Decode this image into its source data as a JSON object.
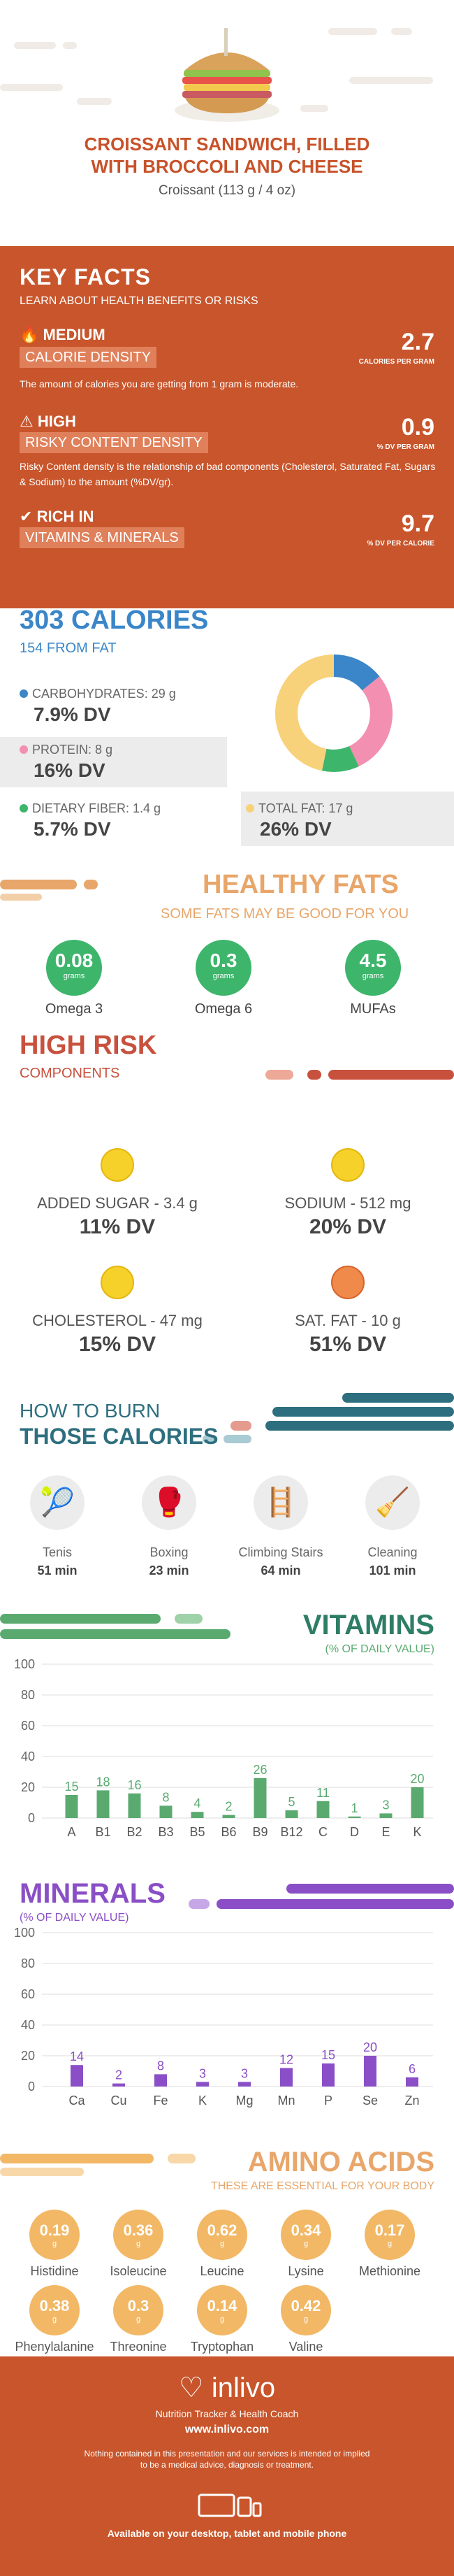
{
  "header": {
    "title_line1": "CROISSANT SANDWICH, FILLED",
    "title_line2": "WITH BROCCOLI AND CHEESE",
    "serving": "Croissant (113 g / 4 oz)"
  },
  "key_facts": {
    "title": "KEY FACTS",
    "subtitle": "LEARN ABOUT HEALTH BENEFITS OR RISKS",
    "calorie": {
      "level": "MEDIUM",
      "label": "CALORIE DENSITY",
      "value": "2.7",
      "unit": "CALORIES PER GRAM",
      "desc": "The amount of calories you are getting from 1 gram is moderate."
    },
    "risk": {
      "level": "HIGH",
      "label": "RISKY CONTENT DENSITY",
      "value": "0.9",
      "unit": "% DV PER GRAM",
      "desc": "Risky Content density is the relationship of bad components (Cholesterol, Saturated Fat, Sugars & Sodium) to the amount (%DV/gr)."
    },
    "rich": {
      "level": "RICH IN",
      "label": "VITAMINS & MINERALS",
      "value": "9.7",
      "unit": "% DV PER CALORIE"
    }
  },
  "calories": {
    "title": "303 CALORIES",
    "sub": "154 FROM FAT",
    "carbs": {
      "label": "CARBOHYDRATES: 29 g",
      "dv": "7.9% DV",
      "color": "#3a86c8",
      "pct": 7.9
    },
    "protein": {
      "label": "PROTEIN: 8 g",
      "dv": "16% DV",
      "color": "#f38fb0",
      "pct": 16
    },
    "fiber": {
      "label": "DIETARY FIBER: 1.4 g",
      "dv": "5.7% DV",
      "color": "#3db56b",
      "pct": 5.7
    },
    "fat": {
      "label": "TOTAL FAT: 17 g",
      "dv": "26% DV",
      "color": "#f7d27a",
      "pct": 26
    }
  },
  "healthy_fats": {
    "title": "HEALTHY FATS",
    "sub": "SOME FATS MAY BE GOOD FOR YOU",
    "unit": "grams",
    "items": [
      {
        "value": "0.08",
        "name": "Omega 3"
      },
      {
        "value": "0.3",
        "name": "Omega 6"
      },
      {
        "value": "4.5",
        "name": "MUFAs"
      }
    ]
  },
  "high_risk": {
    "title": "HIGH RISK",
    "sub": "COMPONENTS",
    "items": [
      {
        "label": "ADDED SUGAR - 3.4 g",
        "dv": "11% DV",
        "mood": "happy"
      },
      {
        "label": "SODIUM - 512 mg",
        "dv": "20% DV",
        "mood": "happy"
      },
      {
        "label": "CHOLESTEROL - 47 mg",
        "dv": "15% DV",
        "mood": "happy"
      },
      {
        "label": "SAT. FAT - 10 g",
        "dv": "51% DV",
        "mood": "sad"
      }
    ]
  },
  "burn": {
    "title1": "HOW TO BURN",
    "title2": "THOSE CALORIES",
    "items": [
      {
        "name": "Tenis",
        "min": "51 min",
        "icon": "tennis-player-icon"
      },
      {
        "name": "Boxing",
        "min": "23 min",
        "icon": "boxer-icon"
      },
      {
        "name": "Climbing Stairs",
        "min": "64 min",
        "icon": "stair-climber-icon"
      },
      {
        "name": "Cleaning",
        "min": "101 min",
        "icon": "cleaner-icon"
      }
    ]
  },
  "vitamins": {
    "title": "VITAMINS",
    "sub": "(% OF DAILY VALUE)"
  },
  "minerals": {
    "title": "MINERALS",
    "sub": "(% OF DAILY VALUE)"
  },
  "chart_data": [
    {
      "type": "bar",
      "title": "VITAMINS",
      "categories": [
        "A",
        "B1",
        "B2",
        "B3",
        "B5",
        "B6",
        "B9",
        "B12",
        "C",
        "D",
        "E",
        "K"
      ],
      "values": [
        15,
        18,
        16,
        8,
        4,
        2,
        26,
        5,
        11,
        1,
        3,
        20
      ],
      "ylim": [
        0,
        100
      ],
      "yticks": [
        0,
        20,
        40,
        60,
        80,
        100
      ],
      "color": "#5aaa70",
      "grid": true
    },
    {
      "type": "bar",
      "title": "MINERALS",
      "categories": [
        "Ca",
        "Cu",
        "Fe",
        "K",
        "Mg",
        "Mn",
        "P",
        "Se",
        "Zn"
      ],
      "values": [
        14,
        2,
        8,
        3,
        3,
        12,
        15,
        20,
        6
      ],
      "ylim": [
        0,
        100
      ],
      "yticks": [
        0,
        20,
        40,
        60,
        80,
        100
      ],
      "color": "#8a4fc6",
      "grid": true
    }
  ],
  "amino": {
    "title": "AMINO ACIDS",
    "sub": "THESE ARE ESSENTIAL FOR YOUR BODY",
    "unit": "g",
    "items": [
      {
        "value": "0.19",
        "name": "Histidine"
      },
      {
        "value": "0.36",
        "name": "Isoleucine"
      },
      {
        "value": "0.62",
        "name": "Leucine"
      },
      {
        "value": "0.34",
        "name": "Lysine"
      },
      {
        "value": "0.17",
        "name": "Methionine"
      },
      {
        "value": "0.38",
        "name": "Phenylalanine"
      },
      {
        "value": "0.3",
        "name": "Threonine"
      },
      {
        "value": "0.14",
        "name": "Tryptophan"
      },
      {
        "value": "0.42",
        "name": "Valine"
      }
    ]
  },
  "footer": {
    "brand": "inlivo",
    "tagline": "Nutrition Tracker & Health Coach",
    "url": "www.inlivo.com",
    "disclaimer1": "Nothing contained in this presentation and our services is intended or implied",
    "disclaimer2": "to be a medical advice, diagnosis or treatment.",
    "available": "Available on your desktop, tablet and mobile phone"
  }
}
